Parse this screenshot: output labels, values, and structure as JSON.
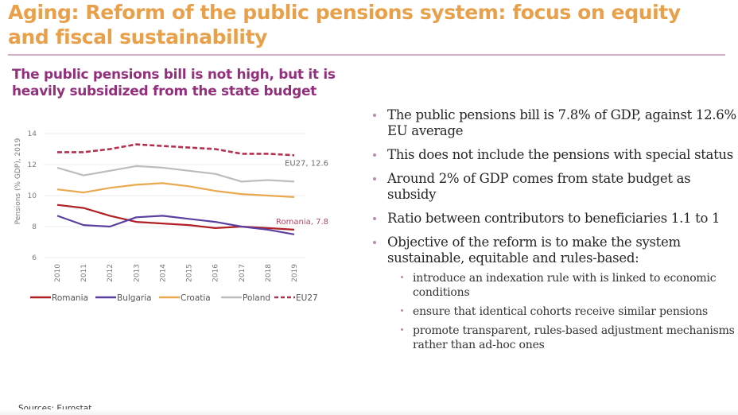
{
  "slide": {
    "title": "Aging: Reform of the public pensions system: focus on equity and fiscal sustainability",
    "chart_heading": "The public pensions bill is not high, but it is heavily subsidized from the state budget",
    "source": "Sources: Eurostat.",
    "colors": {
      "title": "#e8a04a",
      "heading": "#93307d",
      "divider": "#cfaec8",
      "bullet": "#b98aab"
    }
  },
  "bullets": [
    {
      "text": "The public pensions bill is 7.8% of GDP, against 12.6% EU average"
    },
    {
      "text": "This does not include the pensions with special status"
    },
    {
      "text": "Around 2% of GDP comes from state budget as subsidy"
    },
    {
      "text": "Ratio between contributors to beneficiaries 1.1 to 1"
    },
    {
      "text": "Objective of the reform is to make the system sustainable, equitable and rules-based:",
      "sub": [
        "introduce an indexation rule with is linked to economic conditions",
        "ensure that identical cohorts receive similar pensions",
        "promote transparent, rules-based adjustment mechanisms rather than ad-hoc ones"
      ]
    }
  ],
  "chart_data": {
    "type": "line",
    "title": "",
    "xlabel": "",
    "ylabel": "Pensions (% GDP), 2019",
    "x": [
      "2010",
      "2011",
      "2012",
      "2013",
      "2014",
      "2015",
      "2016",
      "2017",
      "2018",
      "2019"
    ],
    "ylim": [
      6,
      14
    ],
    "yticks": [
      6,
      8,
      10,
      12,
      14
    ],
    "grid": true,
    "legend_position": "bottom",
    "series": [
      {
        "name": "Romania",
        "color": "#b01f24",
        "dash": false,
        "values": [
          9.4,
          9.2,
          8.7,
          8.3,
          8.2,
          8.1,
          7.9,
          8.0,
          7.9,
          7.8
        ]
      },
      {
        "name": "Bulgaria",
        "color": "#5b3fa0",
        "dash": false,
        "values": [
          8.7,
          8.1,
          8.0,
          8.6,
          8.7,
          8.5,
          8.3,
          8.0,
          7.8,
          7.5
        ]
      },
      {
        "name": "Croatia",
        "color": "#e9a94e",
        "dash": false,
        "values": [
          10.4,
          10.2,
          10.5,
          10.7,
          10.8,
          10.6,
          10.3,
          10.1,
          10.0,
          9.9
        ]
      },
      {
        "name": "Poland",
        "color": "#bdbdbd",
        "dash": false,
        "values": [
          11.8,
          11.3,
          11.6,
          11.9,
          11.8,
          11.6,
          11.4,
          10.9,
          11.0,
          10.9
        ]
      },
      {
        "name": "EU27",
        "color": "#b5304f",
        "dash": true,
        "values": [
          12.8,
          12.8,
          13.0,
          13.3,
          13.2,
          13.1,
          13.0,
          12.7,
          12.7,
          12.6
        ]
      }
    ],
    "annotations": [
      {
        "series": "EU27",
        "text": "EU27, 12.6",
        "color": "#6e6e6e"
      },
      {
        "series": "Romania",
        "text": "Romania, 7.8",
        "color": "#b04a6a"
      }
    ]
  }
}
